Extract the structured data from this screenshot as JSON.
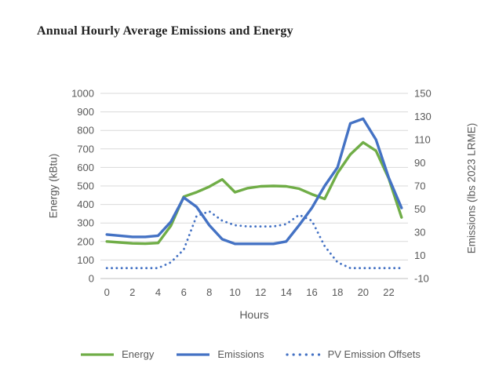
{
  "title": "Annual Hourly Average Emissions and Energy",
  "chart_data": {
    "type": "line",
    "title": "Annual Hourly Average Emissions and Energy",
    "xlabel": "Hours",
    "x": [
      0,
      1,
      2,
      3,
      4,
      5,
      6,
      7,
      8,
      9,
      10,
      11,
      12,
      13,
      14,
      15,
      16,
      17,
      18,
      19,
      20,
      21,
      22,
      23
    ],
    "x_ticks": [
      0,
      2,
      4,
      6,
      8,
      10,
      12,
      14,
      16,
      18,
      20,
      22
    ],
    "left_axis": {
      "label": "Energy (kBtu)",
      "range": [
        0,
        1000
      ],
      "ticks": [
        0,
        100,
        200,
        300,
        400,
        500,
        600,
        700,
        800,
        900,
        1000
      ]
    },
    "right_axis": {
      "label": "Emissions (lbs 2023 LRME)",
      "range": [
        -10,
        150
      ],
      "ticks": [
        -10,
        10,
        30,
        50,
        70,
        90,
        110,
        130,
        150
      ]
    },
    "series": [
      {
        "name": "Energy",
        "axis": "left",
        "units": "kBtu",
        "color": "#70AD47",
        "style": "solid",
        "values": [
          200,
          195,
          190,
          188,
          192,
          285,
          442,
          466,
          496,
          535,
          466,
          488,
          498,
          500,
          498,
          485,
          455,
          430,
          570,
          670,
          735,
          690,
          540,
          330
        ]
      },
      {
        "name": "Emissions",
        "axis": "right",
        "units": "lbs 2023 LRME",
        "color": "#4472C4",
        "style": "solid",
        "values": [
          28,
          27,
          26,
          26,
          27,
          39,
          60,
          52,
          36,
          24,
          20,
          20,
          20,
          20,
          22,
          36,
          51,
          70,
          86,
          124,
          128,
          110,
          77,
          51
        ]
      },
      {
        "name": "PV Emission Offsets",
        "axis": "right",
        "units": "lbs 2023 LRME",
        "color": "#4472C4",
        "style": "dotted",
        "values": [
          -1,
          -1,
          -1,
          -1,
          -1,
          4,
          15,
          44,
          48,
          40,
          36,
          35,
          35,
          35,
          37,
          45,
          40,
          18,
          4,
          -1,
          -1,
          -1,
          -1,
          -1
        ]
      }
    ],
    "grid": true,
    "legend_position": "bottom",
    "layout": {
      "grid_color": "#D9D9D9",
      "axis_line_color": "#BFBFBF",
      "text_color": "#595959",
      "background": "#FFFFFF"
    }
  }
}
